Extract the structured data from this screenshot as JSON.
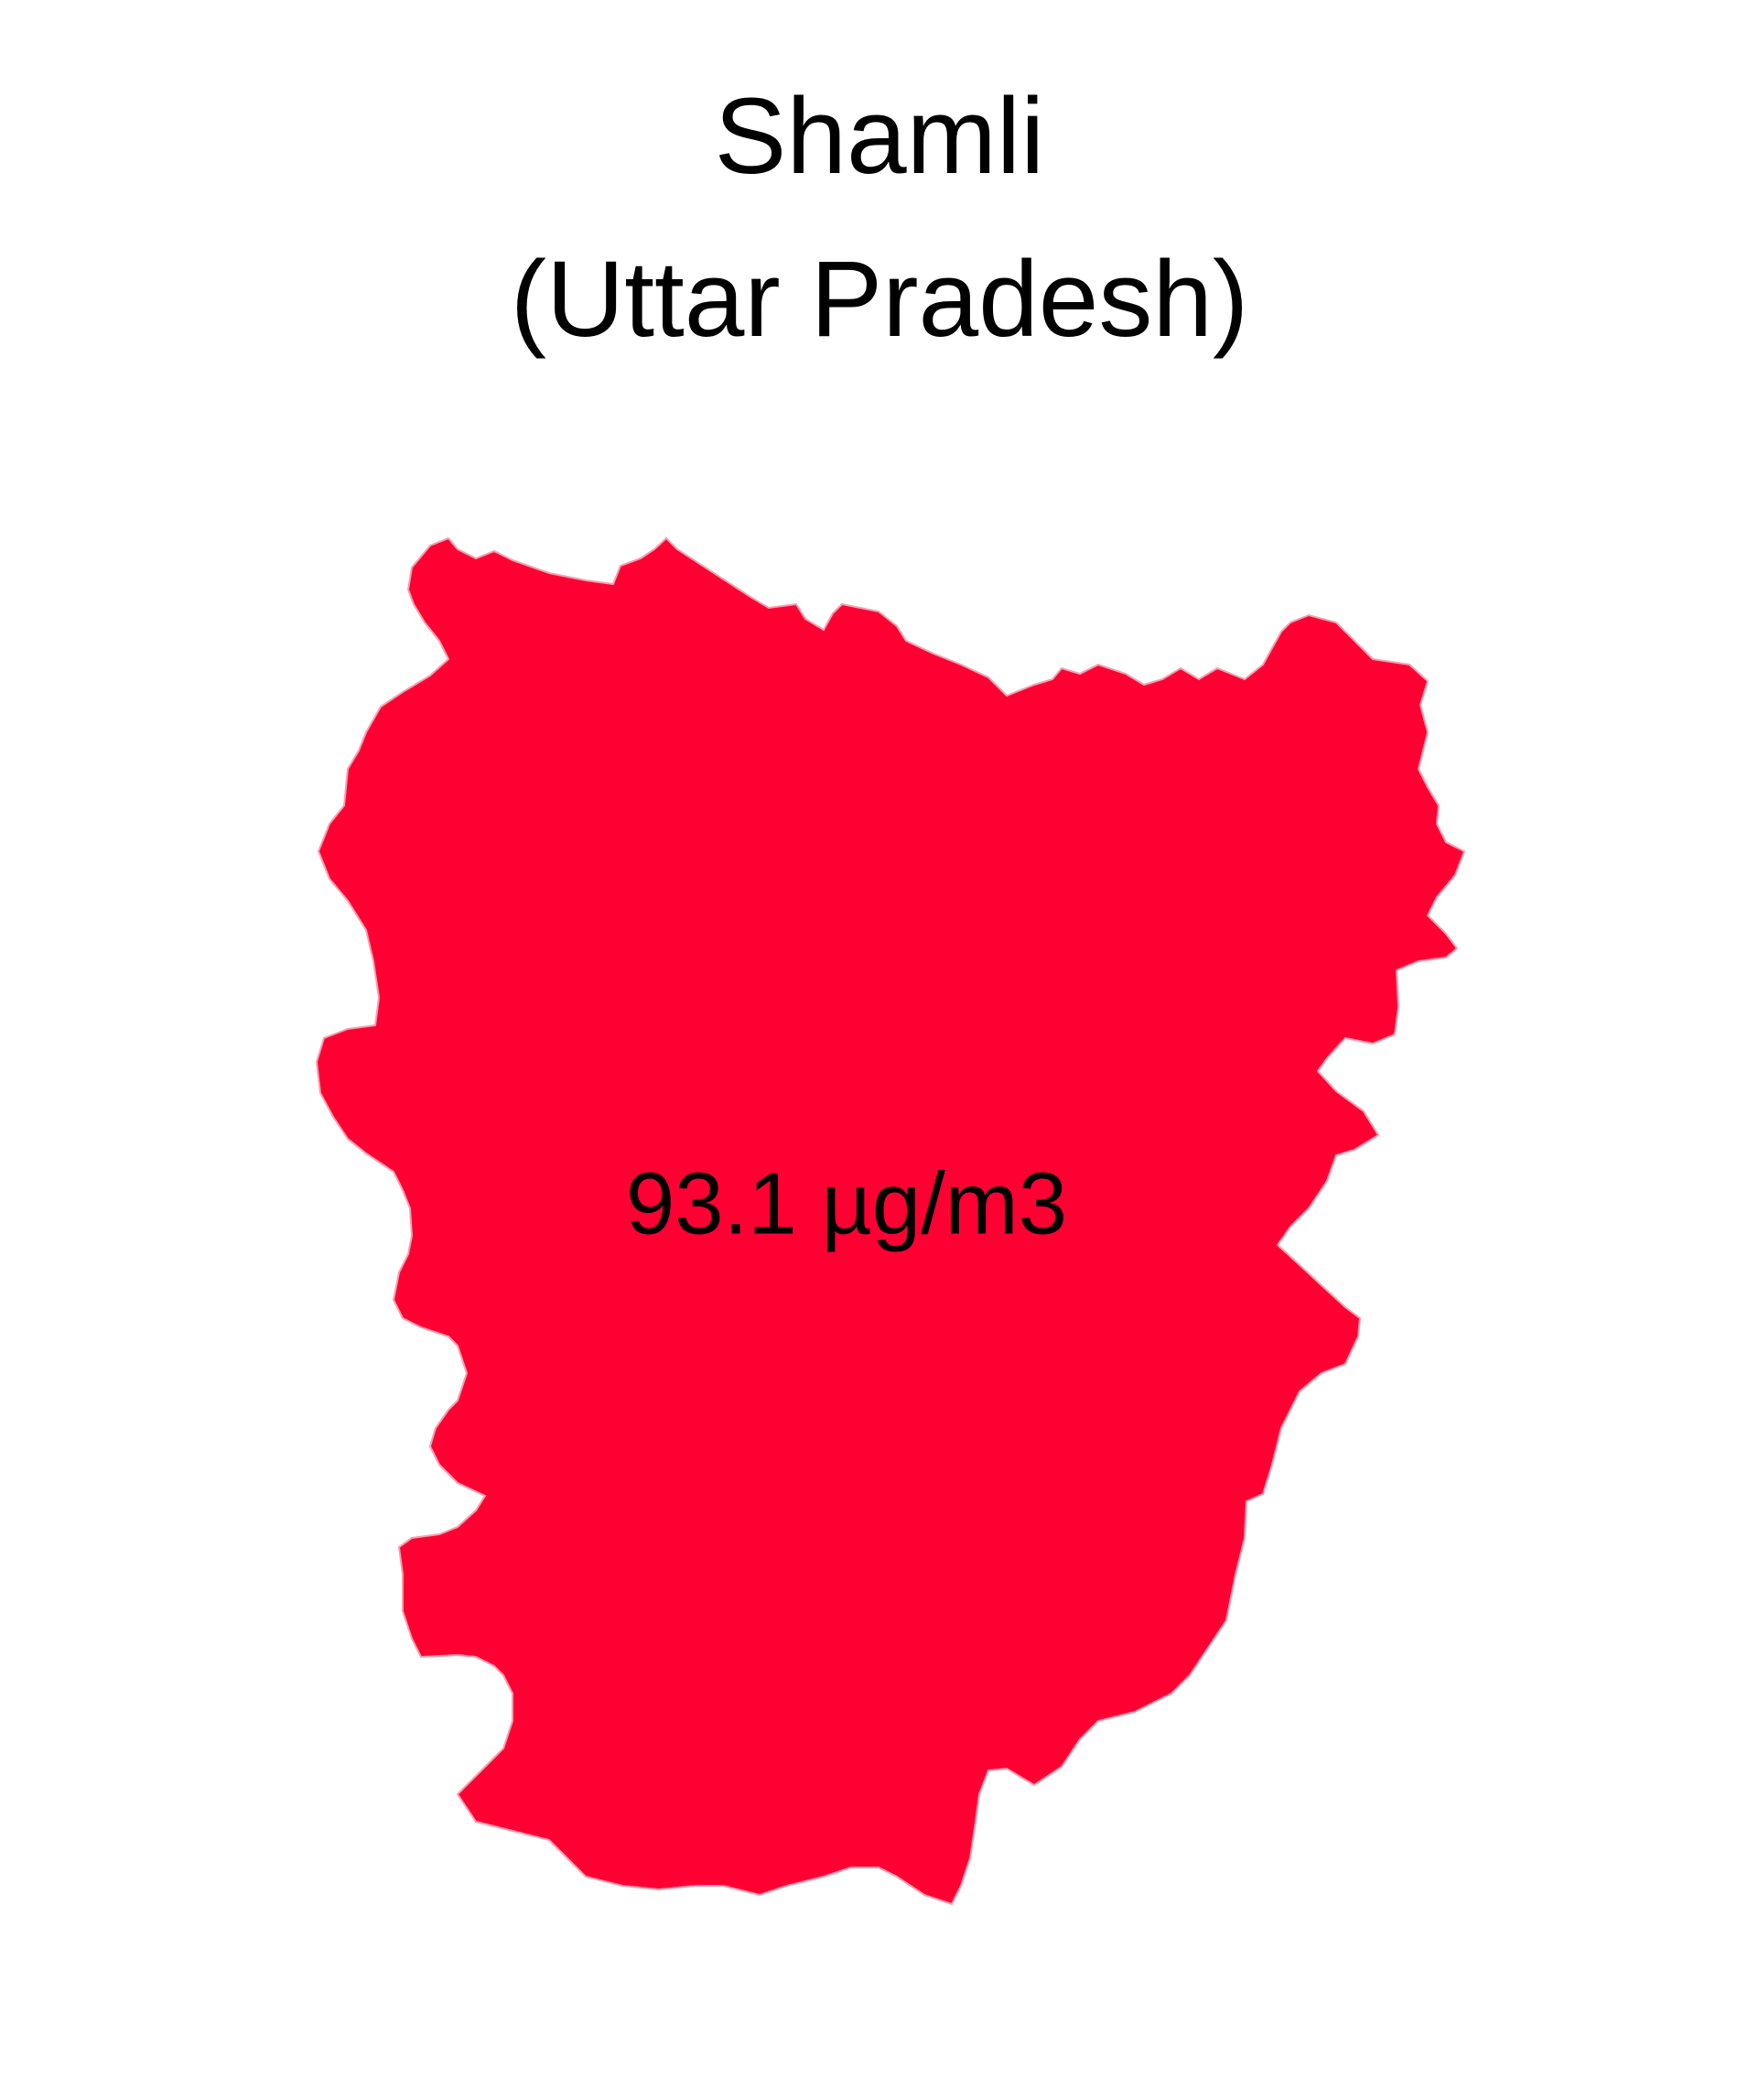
{
  "map": {
    "title": "Shamli",
    "subtitle": "(Uttar Pradesh)",
    "district": {
      "name": "Shamli",
      "value_label": "93.1 µg/m3",
      "value": 93.1,
      "unit": "µg/m3",
      "fill_color": "#ff0033",
      "stroke_color": "#f0a0b0"
    },
    "background_color": "#ffffff"
  }
}
